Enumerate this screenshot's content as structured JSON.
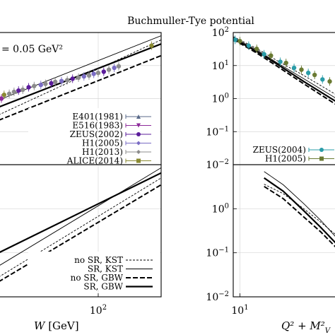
{
  "figure": {
    "title": "Buchmuller-Tye potential"
  },
  "chart_data": [
    {
      "id": "left-top",
      "type": "line",
      "annotation": "= 0.05 GeV²",
      "xlabel": "",
      "ylabel": "",
      "xscale": "log",
      "yscale": "log",
      "xlim": [
        25,
        240
      ],
      "ylim": [
        0.01,
        100
      ],
      "xticks": [],
      "yticks": [],
      "grid": true,
      "legend_position": "bottom-right",
      "legend_entries": [
        {
          "label": "E401(1981)",
          "color": "#5a6a8a",
          "marker": "triangle-up"
        },
        {
          "label": "E516(1983)",
          "color": "#8d2a9a",
          "marker": "triangle-down"
        },
        {
          "label": "ZEUS(2002)",
          "color": "#5b1c9b",
          "marker": "circle"
        },
        {
          "label": "H1(2005)",
          "color": "#7a6cc4",
          "marker": "diamond"
        },
        {
          "label": "H1(2013)",
          "color": "#8c8c8c",
          "marker": "diamond"
        },
        {
          "label": "ALICE(2014)",
          "color": "#8a8a32",
          "marker": "square"
        }
      ],
      "points": [
        {
          "x": 24,
          "y": 0.95,
          "color": "#5b1c9b"
        },
        {
          "x": 26,
          "y": 1.0,
          "color": "#8d2a9a"
        },
        {
          "x": 27,
          "y": 1.3,
          "color": "#8a8a32"
        },
        {
          "x": 29,
          "y": 1.4,
          "color": "#8c8c8c"
        },
        {
          "x": 31,
          "y": 1.6,
          "color": "#8c8c8c"
        },
        {
          "x": 33,
          "y": 1.75,
          "color": "#5b1c9b"
        },
        {
          "x": 35,
          "y": 1.85,
          "color": "#8c8c8c"
        },
        {
          "x": 38,
          "y": 2.2,
          "color": "#5b1c9b"
        },
        {
          "x": 41,
          "y": 2.4,
          "color": "#8c8c8c"
        },
        {
          "x": 45,
          "y": 2.6,
          "color": "#7a6cc4"
        },
        {
          "x": 48,
          "y": 2.8,
          "color": "#8c8c8c"
        },
        {
          "x": 52,
          "y": 2.9,
          "color": "#5b1c9b"
        },
        {
          "x": 55,
          "y": 3.2,
          "color": "#8c8c8c"
        },
        {
          "x": 60,
          "y": 3.4,
          "color": "#7a6cc4"
        },
        {
          "x": 65,
          "y": 3.6,
          "color": "#8c8c8c"
        },
        {
          "x": 70,
          "y": 4.0,
          "color": "#5b1c9b"
        },
        {
          "x": 76,
          "y": 4.3,
          "color": "#8c8c8c"
        },
        {
          "x": 82,
          "y": 4.7,
          "color": "#7a6cc4"
        },
        {
          "x": 88,
          "y": 5.0,
          "color": "#8c8c8c"
        },
        {
          "x": 94,
          "y": 5.6,
          "color": "#7a6cc4"
        },
        {
          "x": 100,
          "y": 6.0,
          "color": "#8c8c8c"
        },
        {
          "x": 108,
          "y": 6.5,
          "color": "#5b1c9b"
        },
        {
          "x": 116,
          "y": 7.5,
          "color": "#8c8c8c"
        },
        {
          "x": 125,
          "y": 8.5,
          "color": "#7a6cc4"
        },
        {
          "x": 133,
          "y": 9.5,
          "color": "#8c8c8c"
        },
        {
          "x": 210,
          "y": 40,
          "color": "#8a8a32"
        }
      ],
      "curves": [
        {
          "label": "no SR, KST",
          "style": "thin-dashed",
          "x": [
            25,
            240
          ],
          "y": [
            0.32,
            60
          ]
        },
        {
          "label": "SR, KST",
          "style": "thin-solid",
          "x": [
            25,
            240
          ],
          "y": [
            0.9,
            80
          ]
        },
        {
          "label": "no SR, GBW",
          "style": "thick-dashed",
          "x": [
            25,
            240
          ],
          "y": [
            0.22,
            20
          ]
        },
        {
          "label": "SR, GBW",
          "style": "thick-solid",
          "x": [
            25,
            240
          ],
          "y": [
            0.55,
            45
          ]
        }
      ]
    },
    {
      "id": "left-bottom",
      "type": "line",
      "xlabel": "W [GeV]",
      "ylabel": "",
      "xscale": "log",
      "yscale": "log",
      "xlim": [
        25,
        240
      ],
      "ylim": [
        0.01,
        10
      ],
      "xticks": [
        {
          "value": 100,
          "label": "10",
          "sup": "2"
        }
      ],
      "yticks": [],
      "grid": true,
      "legend_position": "bottom-right",
      "legend_entries": [
        {
          "label": "no SR, KST",
          "style": "thin-dashed"
        },
        {
          "label": "SR, KST",
          "style": "thin-solid"
        },
        {
          "label": "no SR, GBW",
          "style": "thick-dashed"
        },
        {
          "label": "SR, GBW",
          "style": "thick-solid"
        }
      ],
      "curves": [
        {
          "label": "no SR, KST",
          "style": "thin-dashed",
          "x": [
            25,
            240
          ],
          "y": [
            0.028,
            5
          ]
        },
        {
          "label": "SR, KST",
          "style": "thin-solid",
          "x": [
            25,
            240
          ],
          "y": [
            0.05,
            8.5
          ]
        },
        {
          "label": "no SR, GBW",
          "style": "thick-dashed",
          "x": [
            25,
            240
          ],
          "y": [
            0.022,
            3.5
          ]
        },
        {
          "label": "SR, GBW",
          "style": "thick-solid",
          "x": [
            25,
            240
          ],
          "y": [
            0.1,
            6.5
          ]
        }
      ]
    },
    {
      "id": "right-top",
      "type": "line",
      "xlabel": "",
      "ylabel": "",
      "xscale": "log",
      "yscale": "log",
      "xlim": [
        9.3,
        28.5
      ],
      "ylim": [
        0.01,
        100
      ],
      "xticks": [],
      "yticks": [
        {
          "value": 100,
          "label": "10",
          "sup": "2"
        },
        {
          "value": 10,
          "label": "10",
          "sup": "1"
        },
        {
          "value": 1,
          "label": "10",
          "sup": "0"
        },
        {
          "value": 0.1,
          "label": "10",
          "sup": "−1"
        },
        {
          "value": 0.01,
          "label": "10",
          "sup": "−2"
        }
      ],
      "grid": true,
      "legend_position": "bottom-right",
      "legend_entries": [
        {
          "label": "ZEUS(2004)",
          "color": "#2a9ca8",
          "marker": "circle"
        },
        {
          "label": "H1(2005)",
          "color": "#6a7a32",
          "marker": "square"
        }
      ],
      "points": [
        {
          "x": 9.5,
          "y": 60,
          "color": "#2a9ca8"
        },
        {
          "x": 10.0,
          "y": 55,
          "color": "#6a7a32"
        },
        {
          "x": 11.0,
          "y": 40,
          "color": "#2a9ca8"
        },
        {
          "x": 12.0,
          "y": 32,
          "color": "#6a7a32"
        },
        {
          "x": 13.0,
          "y": 22,
          "color": "#2a9ca8"
        },
        {
          "x": 14.0,
          "y": 20,
          "color": "#6a7a32"
        },
        {
          "x": 15.5,
          "y": 13,
          "color": "#2a9ca8"
        },
        {
          "x": 16.5,
          "y": 12,
          "color": "#6a7a32"
        },
        {
          "x": 18.0,
          "y": 8.5,
          "color": "#2a9ca8"
        },
        {
          "x": 19.5,
          "y": 7.5,
          "color": "#6a7a32"
        },
        {
          "x": 21.0,
          "y": 6.0,
          "color": "#2a9ca8"
        },
        {
          "x": 22.5,
          "y": 5.2,
          "color": "#6a7a32"
        },
        {
          "x": 24.5,
          "y": 3.8,
          "color": "#2a9ca8"
        },
        {
          "x": 26.5,
          "y": 3.3,
          "color": "#6a7a32"
        }
      ],
      "curves": [
        {
          "label": "no SR, KST",
          "style": "thin-dashed",
          "x": [
            9.3,
            12,
            15,
            20,
            28.5
          ],
          "y": [
            75,
            33,
            14,
            5.0,
            1.3
          ]
        },
        {
          "label": "SR, KST",
          "style": "thin-solid",
          "x": [
            9.3,
            12,
            15,
            20,
            28.5
          ],
          "y": [
            70,
            30,
            12,
            4.0,
            1.0
          ]
        },
        {
          "label": "no SR, GBW",
          "style": "thick-dashed",
          "x": [
            9.3,
            12,
            15,
            20,
            28.5
          ],
          "y": [
            62,
            24,
            9.5,
            2.8,
            0.65
          ]
        },
        {
          "label": "SR, GBW",
          "style": "thick-solid",
          "x": [
            9.3,
            12,
            15,
            20,
            28.5
          ],
          "y": [
            65,
            27,
            11,
            3.3,
            0.8
          ]
        }
      ]
    },
    {
      "id": "right-bottom",
      "type": "line",
      "xlabel": "Q² + M²",
      "xlabel_sub": "V",
      "ylabel": "",
      "xscale": "log",
      "yscale": "log",
      "xlim": [
        9.3,
        28.5
      ],
      "ylim": [
        0.01,
        10
      ],
      "xticks": [
        {
          "value": 10,
          "label": "10",
          "sup": "1"
        }
      ],
      "yticks": [
        {
          "value": 1,
          "label": "10",
          "sup": "0"
        },
        {
          "value": 0.1,
          "label": "10",
          "sup": "−1"
        },
        {
          "value": 0.01,
          "label": "10",
          "sup": "−2"
        }
      ],
      "grid": true,
      "curves": [
        {
          "label": "no SR, KST",
          "style": "thin-dashed",
          "x": [
            13,
            16,
            20,
            24,
            28.5
          ],
          "y": [
            3.6,
            2.2,
            1.0,
            0.5,
            0.25
          ]
        },
        {
          "label": "SR, KST",
          "style": "thin-solid",
          "x": [
            13,
            16,
            20,
            24,
            28.5
          ],
          "y": [
            7.0,
            3.5,
            1.3,
            0.55,
            0.22
          ]
        },
        {
          "label": "no SR, GBW",
          "style": "thick-dashed",
          "x": [
            13,
            16,
            20,
            24,
            28.5
          ],
          "y": [
            3.2,
            1.7,
            0.65,
            0.3,
            0.13
          ]
        },
        {
          "label": "SR, GBW",
          "style": "thick-solid",
          "x": [
            13,
            16,
            20,
            24,
            28.5
          ],
          "y": [
            5.0,
            2.5,
            0.9,
            0.38,
            0.16
          ]
        }
      ]
    }
  ]
}
